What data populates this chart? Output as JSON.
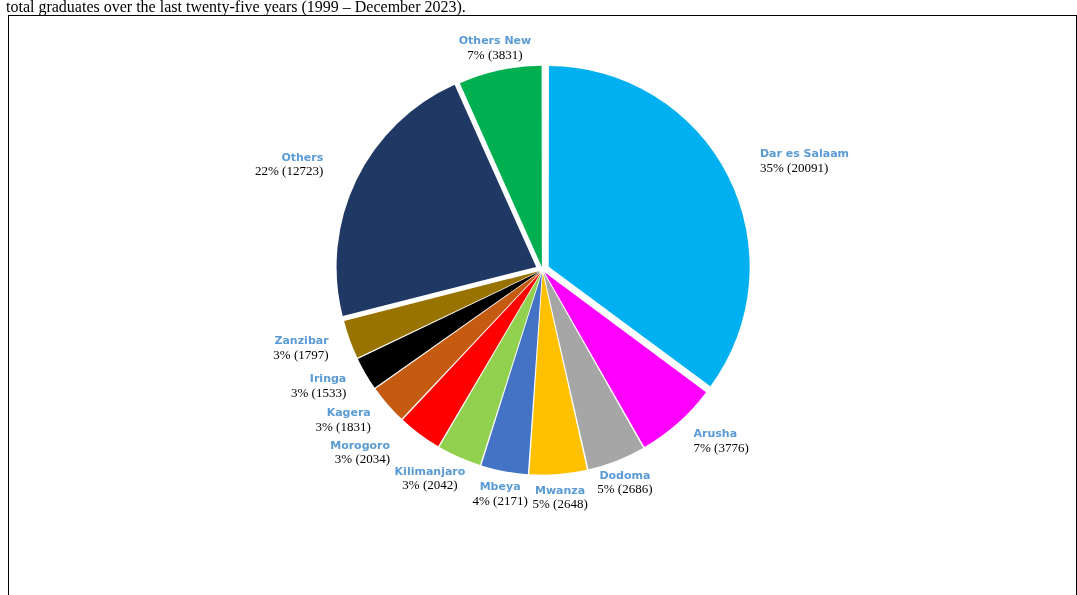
{
  "chart_data": {
    "type": "pie",
    "title": "total graduates over the last twenty-five years (1999 – December 2023).",
    "categories": [
      "Dar es Salaam",
      "Arusha",
      "Dodoma",
      "Mwanza",
      "Mbeya",
      "Kilimanjaro",
      "Morogoro",
      "Kagera",
      "Iringa",
      "Zanzibar",
      "Others",
      "Others New"
    ],
    "values": [
      20091,
      3776,
      2686,
      2648,
      2171,
      2042,
      2034,
      1831,
      1533,
      1797,
      12723,
      3831
    ],
    "colors": [
      "#00b0f0",
      "#ff00ff",
      "#a6a6a6",
      "#ffc000",
      "#4472c4",
      "#92d050",
      "#ff0000",
      "#c55a11",
      "#000000",
      "#997300",
      "#203864",
      "#00b050"
    ],
    "value_labels": [
      "35% (20091)",
      "7% (3776)",
      "5% (2686)",
      "5% (2648)",
      "4% (2171)",
      "3% (2042)",
      "3% (2034)",
      "3% (1831)",
      "3% (1533)",
      "3% (1797)",
      "22% (12723)",
      "7% (3831)"
    ],
    "legend": false
  }
}
